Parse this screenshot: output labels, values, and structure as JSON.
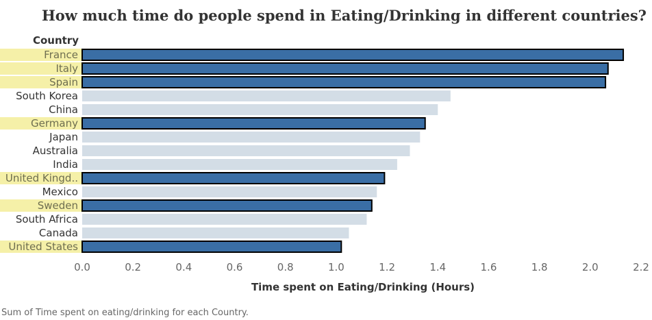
{
  "chart_data": {
    "type": "bar",
    "orientation": "horizontal",
    "title": "How much time do people spend in Eating/Drinking in different countries?",
    "xlabel": "Time spent on Eating/Drinking (Hours)",
    "ylabel": "Country",
    "caption": "Sum of Time spent on eating/drinking for each Country.",
    "xlim": [
      0,
      2.2
    ],
    "xticks": [
      "0.0",
      "0.2",
      "0.4",
      "0.6",
      "0.8",
      "1.0",
      "1.2",
      "1.4",
      "1.6",
      "1.8",
      "2.0",
      "2.2"
    ],
    "grid": false,
    "categories": [
      "France",
      "Italy",
      "Spain",
      "South Korea",
      "China",
      "Germany",
      "Japan",
      "Australia",
      "India",
      "United Kingd..",
      "Mexico",
      "Sweden",
      "South Africa",
      "Canada",
      "United States"
    ],
    "values": [
      2.13,
      2.07,
      2.06,
      1.45,
      1.4,
      1.35,
      1.33,
      1.29,
      1.24,
      1.19,
      1.16,
      1.14,
      1.12,
      1.05,
      1.02
    ],
    "highlighted": [
      true,
      true,
      true,
      false,
      false,
      true,
      false,
      false,
      false,
      true,
      false,
      true,
      false,
      false,
      true
    ],
    "colors": {
      "highlight_bar": "#3a6ea5",
      "highlight_outline": "#000000",
      "muted_bar": "#d3dde6",
      "highlight_label_bg": "#f5f0a8",
      "highlight_label_text": "#6e6e50",
      "label_text": "#333333"
    }
  }
}
